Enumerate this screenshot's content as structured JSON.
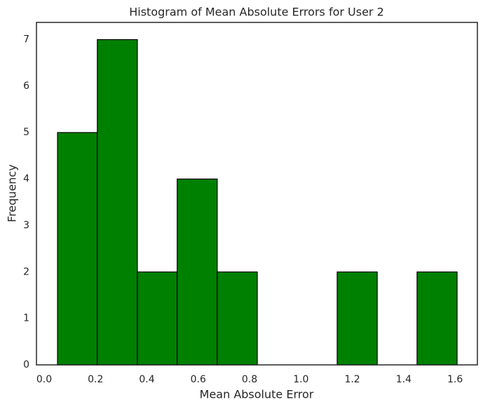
{
  "chart_data": {
    "type": "histogram",
    "title": "Histogram of Mean Absolute Errors for User 2",
    "xlabel": "Mean Absolute Error",
    "ylabel": "Frequency",
    "bins": [
      0.052,
      0.207,
      0.363,
      0.518,
      0.674,
      0.83,
      0.985,
      1.141,
      1.297,
      1.452,
      1.608
    ],
    "values": [
      5,
      7,
      2,
      4,
      2,
      0,
      0,
      2,
      0,
      2
    ],
    "color": "#008000",
    "edgecolor": "#000000",
    "xlim": [
      -0.03,
      1.687
    ],
    "ylim": [
      0,
      7.37
    ],
    "xticks": [
      {
        "value": 0,
        "label": "0.0"
      },
      0.2,
      0.4,
      0.6,
      0.8,
      {
        "value": 1,
        "label": "1.0"
      },
      1.2,
      1.4,
      1.6
    ],
    "yticks": [
      0,
      1,
      2,
      3,
      4,
      5,
      6,
      7
    ],
    "grid": false
  }
}
